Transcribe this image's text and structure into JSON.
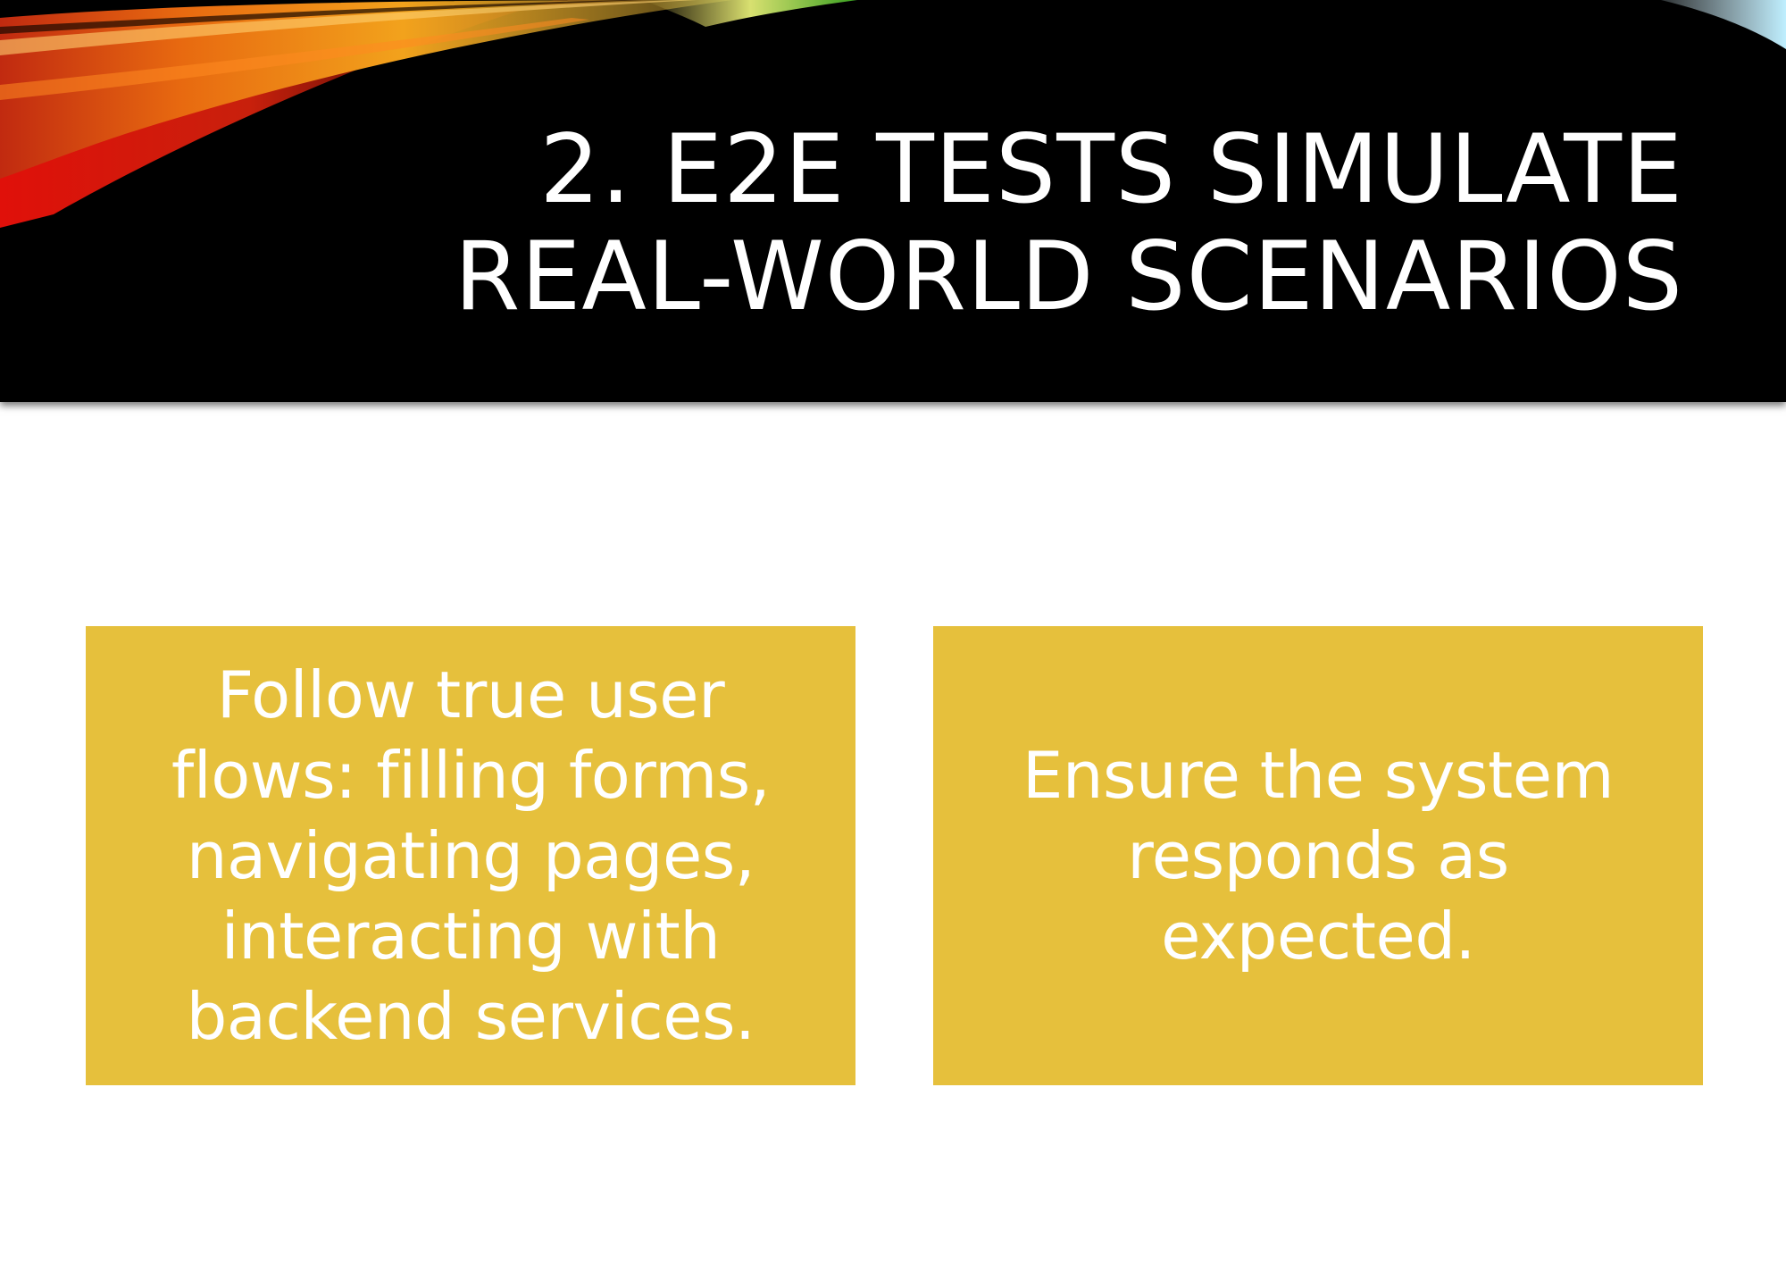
{
  "slide": {
    "title_lines": [
      "2. E2E TESTS SIMULATE",
      "REAL-WORLD SCENARIOS"
    ],
    "cards": [
      {
        "lines": [
          "Follow true user",
          "flows: filling forms,",
          "navigating pages,",
          "interacting with",
          "backend services."
        ]
      },
      {
        "lines": [
          "Ensure the system",
          "responds as",
          "expected."
        ]
      }
    ]
  },
  "colors": {
    "header_background": "#000000",
    "card_background": "#e6c03c",
    "text": "#ffffff"
  }
}
